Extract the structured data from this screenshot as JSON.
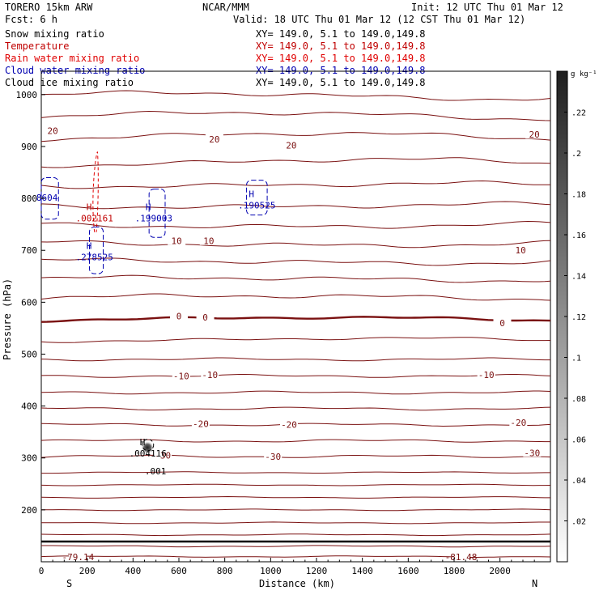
{
  "header": {
    "model": "TORERO  15km ARW",
    "center": "NCAR/MMM",
    "init": "Init: 12 UTC Thu 01 Mar 12",
    "fcst": "Fcst:    6 h",
    "valid": "Valid: 18 UTC Thu 01 Mar 12 (12 CST Thu 01 Mar 12)"
  },
  "legend": [
    {
      "name": "Snow mixing ratio",
      "xy": "XY= 149.0,  5.1 to 149.0,149.8",
      "color": "#000000"
    },
    {
      "name": "Temperature",
      "xy": "XY= 149.0,  5.1 to 149.0,149.8",
      "color": "#c00000"
    },
    {
      "name": "Rain water mixing ratio",
      "xy": "XY= 149.0,  5.1 to 149.0,149.8",
      "color": "#e00000"
    },
    {
      "name": "Cloud water mixing ratio",
      "xy": "XY= 149.0,  5.1 to 149.0,149.8",
      "color": "#0000b0"
    },
    {
      "name": "Cloud ice mixing ratio",
      "xy": "XY= 149.0,  5.1 to 149.0,149.8",
      "color": "#000000"
    }
  ],
  "chart_data": {
    "type": "cross-section",
    "xlabel": "Distance (km)",
    "ylabel": "Pressure (hPa)",
    "xlim": [
      0,
      2220
    ],
    "ylim": [
      1045,
      100
    ],
    "x_ticks": [
      0,
      200,
      400,
      600,
      800,
      1000,
      1200,
      1400,
      1600,
      1800,
      2000
    ],
    "y_ticks": [
      200,
      300,
      400,
      500,
      600,
      700,
      800,
      900,
      1000
    ],
    "left_end": "S",
    "right_end": "N",
    "colorbar": {
      "unit": "g kg⁻¹",
      "max": 0.24,
      "ticks": [
        ".02",
        ".04",
        ".06",
        ".08",
        ".1",
        ".12",
        ".14",
        ".16",
        ".18",
        ".2",
        ".22"
      ]
    },
    "temperature_isotherms_C": [
      {
        "value": -30,
        "pressure_hPa": 303
      },
      {
        "value": -20,
        "pressure_hPa": 364
      },
      {
        "value": -10,
        "pressure_hPa": 458
      },
      {
        "value": 0,
        "pressure_hPa": 568
      },
      {
        "value": 10,
        "pressure_hPa": 712
      },
      {
        "value": 20,
        "pressure_hPa": 920
      }
    ],
    "extra_contour_levels": [
      {
        "value": -79.14,
        "pressure_hPa": 109
      },
      {
        "value": -81.48,
        "pressure_hPa": 109
      }
    ],
    "temperature_labels": [
      {
        "text": "-79.14",
        "x_km": 160,
        "p": 109
      },
      {
        "text": "-81.48",
        "x_km": 1830,
        "p": 109
      },
      {
        "text": "-30",
        "x_km": 530,
        "p": 305
      },
      {
        "text": "-30",
        "x_km": 1010,
        "p": 303
      },
      {
        "text": "-30",
        "x_km": 2140,
        "p": 310
      },
      {
        "text": "-20",
        "x_km": 695,
        "p": 366
      },
      {
        "text": "-20",
        "x_km": 1080,
        "p": 364
      },
      {
        "text": "-20",
        "x_km": 2080,
        "p": 368
      },
      {
        "text": "-10",
        "x_km": 610,
        "p": 458
      },
      {
        "text": "-10",
        "x_km": 735,
        "p": 460
      },
      {
        "text": "-10",
        "x_km": 1940,
        "p": 460
      },
      {
        "text": "0",
        "x_km": 600,
        "p": 573
      },
      {
        "text": "0",
        "x_km": 715,
        "p": 571
      },
      {
        "text": "0",
        "x_km": 2010,
        "p": 560
      },
      {
        "text": "10",
        "x_km": 590,
        "p": 718
      },
      {
        "text": "10",
        "x_km": 730,
        "p": 718
      },
      {
        "text": "10",
        "x_km": 2090,
        "p": 700
      },
      {
        "text": "20",
        "x_km": 50,
        "p": 930
      },
      {
        "text": "20",
        "x_km": 755,
        "p": 914
      },
      {
        "text": "20",
        "x_km": 1090,
        "p": 902
      },
      {
        "text": "20",
        "x_km": 2150,
        "p": 923
      }
    ],
    "extrema_labels": [
      {
        "text": "H",
        "value": ".004116",
        "x_km": 465,
        "p": 312,
        "color": "#000000"
      },
      {
        "text": "",
        "value": ".001",
        "x_km": 498,
        "p": 278,
        "color": "#000000"
      },
      {
        "text": "H",
        "value": ".278525",
        "x_km": 232,
        "p": 690,
        "color": "#0000b0"
      },
      {
        "text": "H",
        "value": ".002161",
        "x_km": 232,
        "p": 765,
        "color": "#c00000"
      },
      {
        "text": "H",
        "value": ".199003",
        "x_km": 490,
        "p": 765,
        "color": "#0000b0"
      },
      {
        "text": "H",
        "value": ".190525",
        "x_km": 940,
        "p": 790,
        "color": "#0000b0"
      },
      {
        "text": "",
        "value": "8604",
        "x_km": 25,
        "p": 805,
        "color": "#0000b0"
      }
    ]
  }
}
